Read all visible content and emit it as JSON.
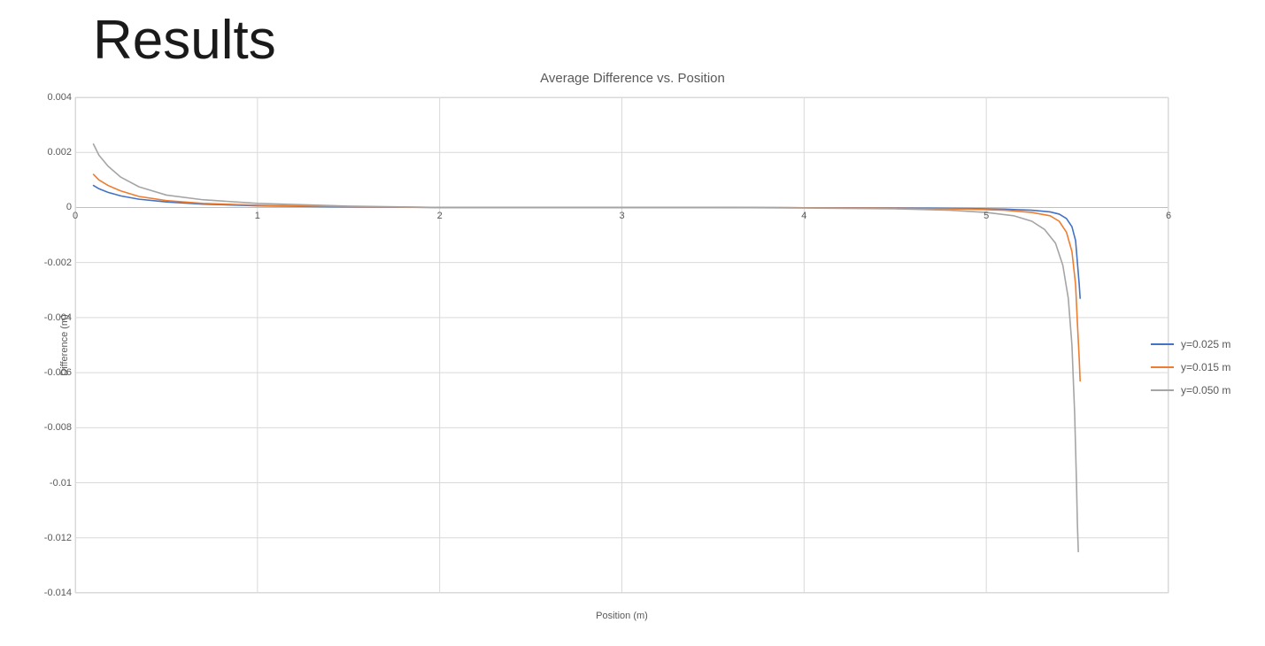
{
  "title": "Results",
  "chart": {
    "type": "line",
    "title": "Average Difference vs. Position",
    "title_fontsize": 15,
    "title_color": "#595959",
    "background_color": "#ffffff",
    "grid_color": "#d9d9d9",
    "axis_line_color": "#bfbfbf",
    "tick_font_size": 11,
    "tick_color": "#595959",
    "x_axis": {
      "label": "Position (m)",
      "min": 0,
      "max": 6,
      "tick_step": 1,
      "ticks": [
        0,
        1,
        2,
        3,
        4,
        5,
        6
      ],
      "label_fontsize": 11
    },
    "y_axis": {
      "label": "Difference (m)",
      "min": -0.014,
      "max": 0.004,
      "tick_step": 0.002,
      "ticks": [
        0.004,
        0.002,
        0,
        -0.002,
        -0.004,
        -0.006,
        -0.008,
        -0.01,
        -0.012,
        -0.014
      ],
      "label_fontsize": 11
    },
    "line_width": 1.6,
    "legend": {
      "position": "right",
      "font_size": 12,
      "text_color": "#595959"
    },
    "series": [
      {
        "name": "y=0.025 m",
        "color": "#4472c4",
        "x": [
          0.1,
          0.13,
          0.18,
          0.25,
          0.35,
          0.5,
          0.7,
          1.0,
          1.5,
          2.0,
          2.5,
          3.0,
          3.5,
          4.0,
          4.5,
          4.9,
          5.1,
          5.25,
          5.35,
          5.4,
          5.44,
          5.47,
          5.49,
          5.5,
          5.51,
          5.515
        ],
        "y": [
          0.0008,
          0.00068,
          0.00055,
          0.00042,
          0.0003,
          0.0002,
          0.00012,
          6e-05,
          2e-05,
          0.0,
          0.0,
          0.0,
          0.0,
          -1e-05,
          -2e-05,
          -4e-05,
          -6e-05,
          -0.0001,
          -0.00016,
          -0.00024,
          -0.0004,
          -0.0007,
          -0.0012,
          -0.002,
          -0.0028,
          -0.0033
        ]
      },
      {
        "name": "y=0.015 m",
        "color": "#ed7d31",
        "x": [
          0.1,
          0.13,
          0.18,
          0.25,
          0.35,
          0.5,
          0.7,
          1.0,
          1.5,
          2.0,
          2.5,
          3.0,
          3.5,
          4.0,
          4.5,
          4.9,
          5.1,
          5.25,
          5.35,
          5.4,
          5.44,
          5.47,
          5.49,
          5.5,
          5.51,
          5.515
        ],
        "y": [
          0.0012,
          0.001,
          0.0008,
          0.0006,
          0.0004,
          0.00025,
          0.00015,
          8e-05,
          3e-05,
          0.0,
          0.0,
          0.0,
          0.0,
          -1e-05,
          -3e-05,
          -6e-05,
          -0.0001,
          -0.00018,
          -0.0003,
          -0.0005,
          -0.0009,
          -0.0016,
          -0.0028,
          -0.0042,
          -0.0055,
          -0.0063
        ]
      },
      {
        "name": "y=0.050 m",
        "color": "#a5a5a5",
        "x": [
          0.1,
          0.13,
          0.18,
          0.25,
          0.35,
          0.5,
          0.7,
          1.0,
          1.5,
          2.0,
          2.5,
          3.0,
          3.5,
          4.0,
          4.5,
          4.8,
          5.0,
          5.15,
          5.25,
          5.32,
          5.38,
          5.42,
          5.45,
          5.47,
          5.485,
          5.495,
          5.5,
          5.505
        ],
        "y": [
          0.0023,
          0.0019,
          0.0015,
          0.0011,
          0.00075,
          0.00045,
          0.00028,
          0.00015,
          5e-05,
          0.0,
          0.0,
          0.0,
          0.0,
          -2e-05,
          -5e-05,
          -0.0001,
          -0.00018,
          -0.0003,
          -0.0005,
          -0.0008,
          -0.0013,
          -0.0021,
          -0.0033,
          -0.005,
          -0.0075,
          -0.01,
          -0.0115,
          -0.0125
        ]
      }
    ]
  }
}
